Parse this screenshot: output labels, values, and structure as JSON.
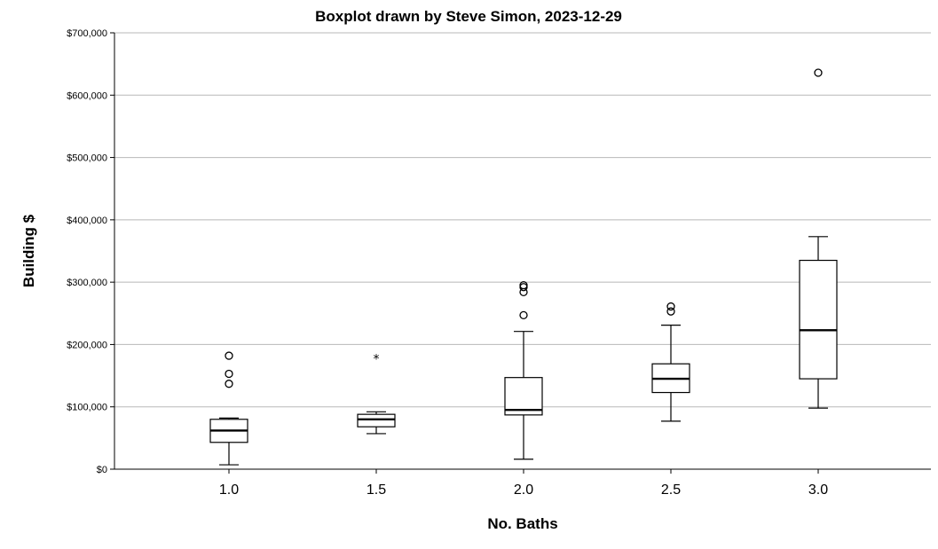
{
  "chart_data": {
    "type": "boxplot",
    "title": "Boxplot drawn by Steve Simon, 2023-12-29",
    "xlabel": "No. Baths",
    "ylabel": "Building $",
    "ylim": [
      0,
      700000
    ],
    "yticks": [
      0,
      100000,
      200000,
      300000,
      400000,
      500000,
      600000,
      700000
    ],
    "ytick_labels": [
      "$0",
      "$100,000",
      "$200,000",
      "$300,000",
      "$400,000",
      "$500,000",
      "$600,000",
      "$700,000"
    ],
    "grid": true,
    "categories": [
      "1.0",
      "1.5",
      "2.0",
      "2.5",
      "3.0"
    ],
    "boxes": [
      {
        "category": "1.0",
        "whisker_low": 7000,
        "q1": 43000,
        "median": 62000,
        "q3": 80000,
        "whisker_high": 82000,
        "outliers": [
          137000,
          153000,
          182000
        ],
        "extremes": []
      },
      {
        "category": "1.5",
        "whisker_low": 57000,
        "q1": 68000,
        "median": 80000,
        "q3": 88000,
        "whisker_high": 92000,
        "outliers": [],
        "extremes": [
          180000
        ]
      },
      {
        "category": "2.0",
        "whisker_low": 16000,
        "q1": 87000,
        "median": 95000,
        "q3": 147000,
        "whisker_high": 221000,
        "outliers": [
          247000,
          284000,
          292000,
          295000
        ],
        "extremes": []
      },
      {
        "category": "2.5",
        "whisker_low": 77000,
        "q1": 123000,
        "median": 145000,
        "q3": 169000,
        "whisker_high": 231000,
        "outliers": [
          253000,
          261000
        ],
        "extremes": []
      },
      {
        "category": "3.0",
        "whisker_low": 98000,
        "q1": 145000,
        "median": 223000,
        "q3": 335000,
        "whisker_high": 373000,
        "outliers": [
          636000
        ],
        "extremes": []
      }
    ]
  }
}
